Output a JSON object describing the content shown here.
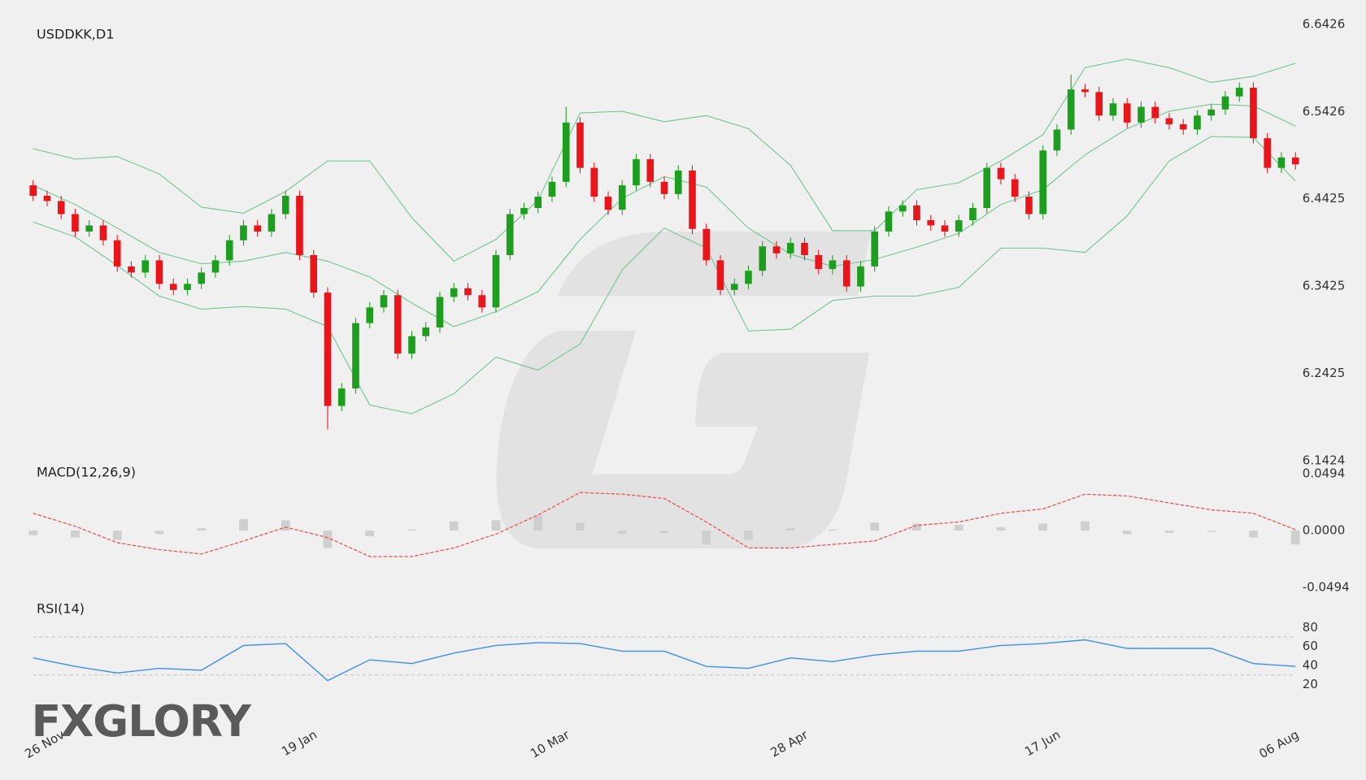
{
  "chart_data": [
    {
      "type": "candlestick",
      "title": "USDDKK,D1",
      "up_color": "#1e9e1e",
      "down_color": "#e8161b",
      "xlim": [
        0,
        90
      ],
      "categories": [
        "26 Nov",
        null,
        null,
        null,
        null,
        null,
        null,
        null,
        null,
        null,
        null,
        null,
        null,
        null,
        null,
        null,
        null,
        null,
        "19 Jan",
        null,
        null,
        null,
        null,
        null,
        null,
        null,
        null,
        null,
        null,
        null,
        null,
        null,
        null,
        null,
        null,
        null,
        "10 Mar",
        null,
        null,
        null,
        null,
        null,
        null,
        null,
        null,
        null,
        null,
        null,
        null,
        null,
        null,
        null,
        null,
        "28 Apr",
        null,
        null,
        null,
        null,
        null,
        null,
        null,
        null,
        null,
        null,
        null,
        null,
        null,
        null,
        null,
        null,
        null,
        "17 Jun",
        null,
        null,
        null,
        null,
        null,
        null,
        null,
        null,
        null,
        null,
        null,
        null,
        null,
        null,
        null,
        null,
        "06 Aug",
        null,
        null
      ],
      "open": [
        6.458,
        6.446,
        6.44,
        6.425,
        6.405,
        6.412,
        6.395,
        6.365,
        6.358,
        6.372,
        6.345,
        6.338,
        6.345,
        6.358,
        6.372,
        6.395,
        6.412,
        6.405,
        6.425,
        6.446,
        6.378,
        6.335,
        6.205,
        6.225,
        6.3,
        6.318,
        6.332,
        6.265,
        6.285,
        6.295,
        6.33,
        6.34,
        6.332,
        6.318,
        6.378,
        6.425,
        6.432,
        6.445,
        6.462,
        6.53,
        6.478,
        6.445,
        6.43,
        6.458,
        6.488,
        6.462,
        6.448,
        6.475,
        6.408,
        6.372,
        6.338,
        6.345,
        6.36,
        6.388,
        6.38,
        6.392,
        6.378,
        6.362,
        6.372,
        6.342,
        6.365,
        6.405,
        6.428,
        6.435,
        6.418,
        6.412,
        6.405,
        6.418,
        6.432,
        6.478,
        6.465,
        6.445,
        6.425,
        6.498,
        6.522,
        6.568,
        6.565,
        6.538,
        6.552,
        6.53,
        6.548,
        6.535,
        6.528,
        6.522,
        6.538,
        6.545,
        6.56,
        6.57,
        6.512,
        6.478,
        6.49
      ],
      "high": [
        6.464,
        6.452,
        6.446,
        6.431,
        6.418,
        6.418,
        6.401,
        6.371,
        6.378,
        6.378,
        6.351,
        6.351,
        6.364,
        6.378,
        6.401,
        6.418,
        6.418,
        6.431,
        6.452,
        6.452,
        6.384,
        6.341,
        6.231,
        6.306,
        6.324,
        6.338,
        6.338,
        6.291,
        6.301,
        6.336,
        6.346,
        6.346,
        6.338,
        6.384,
        6.431,
        6.438,
        6.451,
        6.468,
        6.548,
        6.536,
        6.484,
        6.451,
        6.464,
        6.494,
        6.494,
        6.468,
        6.481,
        6.481,
        6.414,
        6.378,
        6.351,
        6.366,
        6.394,
        6.394,
        6.398,
        6.398,
        6.384,
        6.378,
        6.378,
        6.371,
        6.411,
        6.434,
        6.441,
        6.441,
        6.424,
        6.418,
        6.424,
        6.438,
        6.484,
        6.484,
        6.471,
        6.451,
        6.504,
        6.528,
        6.585,
        6.574,
        6.571,
        6.558,
        6.558,
        6.554,
        6.554,
        6.541,
        6.534,
        6.544,
        6.551,
        6.566,
        6.576,
        6.576,
        6.518,
        6.496,
        6.496
      ],
      "low": [
        6.44,
        6.434,
        6.419,
        6.399,
        6.399,
        6.389,
        6.359,
        6.352,
        6.352,
        6.339,
        6.332,
        6.332,
        6.339,
        6.352,
        6.366,
        6.389,
        6.399,
        6.399,
        6.419,
        6.372,
        6.329,
        6.178,
        6.199,
        6.219,
        6.294,
        6.312,
        6.259,
        6.259,
        6.279,
        6.289,
        6.324,
        6.326,
        6.312,
        6.312,
        6.372,
        6.419,
        6.426,
        6.439,
        6.456,
        6.472,
        6.439,
        6.424,
        6.424,
        6.452,
        6.456,
        6.442,
        6.442,
        6.402,
        6.366,
        6.332,
        6.332,
        6.339,
        6.354,
        6.374,
        6.374,
        6.372,
        6.356,
        6.356,
        6.336,
        6.336,
        6.359,
        6.399,
        6.422,
        6.412,
        6.406,
        6.399,
        6.399,
        6.412,
        6.426,
        6.459,
        6.439,
        6.419,
        6.419,
        6.492,
        6.516,
        6.559,
        6.532,
        6.532,
        6.524,
        6.524,
        6.529,
        6.522,
        6.516,
        6.516,
        6.532,
        6.539,
        6.554,
        6.506,
        6.472,
        6.472,
        6.476
      ],
      "close": [
        6.446,
        6.44,
        6.425,
        6.405,
        6.412,
        6.395,
        6.365,
        6.358,
        6.372,
        6.345,
        6.338,
        6.345,
        6.358,
        6.372,
        6.395,
        6.412,
        6.405,
        6.425,
        6.446,
        6.378,
        6.335,
        6.205,
        6.225,
        6.3,
        6.318,
        6.332,
        6.265,
        6.285,
        6.295,
        6.33,
        6.34,
        6.332,
        6.318,
        6.378,
        6.425,
        6.432,
        6.445,
        6.462,
        6.53,
        6.478,
        6.445,
        6.43,
        6.458,
        6.488,
        6.462,
        6.448,
        6.475,
        6.408,
        6.372,
        6.338,
        6.345,
        6.36,
        6.388,
        6.38,
        6.392,
        6.378,
        6.362,
        6.372,
        6.342,
        6.365,
        6.405,
        6.428,
        6.435,
        6.418,
        6.412,
        6.405,
        6.418,
        6.432,
        6.478,
        6.465,
        6.445,
        6.425,
        6.498,
        6.522,
        6.568,
        6.565,
        6.538,
        6.552,
        6.53,
        6.548,
        6.535,
        6.528,
        6.522,
        6.538,
        6.545,
        6.56,
        6.57,
        6.512,
        6.478,
        6.49,
        6.482
      ],
      "bands": {
        "color": "#6cc48f",
        "x": [
          0,
          3,
          6,
          9,
          12,
          15,
          18,
          21,
          24,
          27,
          30,
          33,
          36,
          39,
          42,
          45,
          48,
          51,
          54,
          57,
          60,
          63,
          66,
          69,
          72,
          75,
          78,
          81,
          84,
          87,
          90
        ],
        "upper": [
          6.5,
          6.488,
          6.491,
          6.471,
          6.433,
          6.426,
          6.451,
          6.486,
          6.486,
          6.421,
          6.371,
          6.396,
          6.441,
          6.541,
          6.543,
          6.531,
          6.538,
          6.523,
          6.481,
          6.406,
          6.406,
          6.453,
          6.461,
          6.486,
          6.516,
          6.593,
          6.603,
          6.593,
          6.576,
          6.583,
          6.598
        ],
        "middle": [
          6.458,
          6.436,
          6.409,
          6.381,
          6.368,
          6.371,
          6.381,
          6.371,
          6.353,
          6.323,
          6.296,
          6.313,
          6.336,
          6.396,
          6.443,
          6.468,
          6.456,
          6.409,
          6.379,
          6.365,
          6.373,
          6.387,
          6.403,
          6.436,
          6.453,
          6.493,
          6.523,
          6.543,
          6.551,
          6.549,
          6.526
        ],
        "lower": [
          6.416,
          6.399,
          6.366,
          6.331,
          6.316,
          6.319,
          6.316,
          6.296,
          6.206,
          6.196,
          6.219,
          6.261,
          6.246,
          6.276,
          6.361,
          6.409,
          6.386,
          6.291,
          6.293,
          6.326,
          6.331,
          6.331,
          6.341,
          6.386,
          6.386,
          6.381,
          6.423,
          6.486,
          6.514,
          6.513,
          6.463
        ]
      },
      "ylim": [
        6.1424,
        6.6426
      ],
      "yticks": [
        6.6426,
        6.5426,
        6.4425,
        6.3425,
        6.2425,
        6.1424
      ]
    },
    {
      "type": "bar",
      "title": "MACD(12,26,9)",
      "xlim": [
        0,
        90
      ],
      "x": [
        0,
        3,
        6,
        9,
        12,
        15,
        18,
        21,
        24,
        27,
        30,
        33,
        36,
        39,
        42,
        45,
        48,
        51,
        54,
        57,
        60,
        63,
        66,
        69,
        72,
        75,
        78,
        81,
        84,
        87,
        90
      ],
      "series": [
        {
          "type": "bar",
          "color": "#cfcfcf",
          "values": [
            -0.004,
            -0.006,
            -0.008,
            -0.003,
            0.002,
            0.01,
            0.009,
            -0.015,
            -0.005,
            0.001,
            0.008,
            0.009,
            0.013,
            0.007,
            -0.003,
            -0.002,
            -0.012,
            -0.008,
            0.002,
            0.001,
            0.007,
            0.006,
            0.005,
            0.003,
            0.006,
            0.008,
            -0.003,
            -0.002,
            -0.001,
            -0.006,
            -0.012
          ]
        },
        {
          "type": "line",
          "color": "#f05050",
          "dashed": true,
          "values": [
            0.015,
            0.0038,
            -0.0105,
            -0.0165,
            -0.0203,
            -0.009,
            0.003,
            -0.006,
            -0.0225,
            -0.0225,
            -0.015,
            -0.003,
            0.0135,
            0.033,
            0.0315,
            0.0278,
            0.0075,
            -0.015,
            -0.015,
            -0.012,
            -0.009,
            0.0045,
            0.0075,
            0.015,
            0.0188,
            0.0315,
            0.03,
            0.024,
            0.018,
            0.015,
            0.0008
          ]
        }
      ],
      "ylim": [
        -0.0494,
        0.0494
      ],
      "yticks": [
        0.0494,
        {
          "value": 0,
          "label": "0.0000"
        },
        -0.0494
      ]
    },
    {
      "type": "line",
      "title": "RSI(14)",
      "xlim": [
        0,
        90
      ],
      "color": "#3d8ee8",
      "x": [
        0,
        3,
        6,
        9,
        12,
        15,
        18,
        21,
        24,
        27,
        30,
        33,
        36,
        39,
        42,
        45,
        48,
        51,
        54,
        57,
        60,
        63,
        66,
        69,
        72,
        75,
        78,
        81,
        84,
        87,
        90
      ],
      "values": [
        48,
        39,
        32,
        37,
        35,
        61,
        63,
        24,
        46,
        42,
        53,
        61,
        64,
        63,
        55,
        55,
        39,
        37,
        48,
        44,
        51,
        55,
        55,
        61,
        63,
        67,
        58,
        58,
        58,
        42,
        39
      ],
      "levels": [
        70,
        30
      ],
      "ylim": [
        0,
        100
      ],
      "yticks": [
        80,
        60,
        40,
        20
      ]
    }
  ],
  "watermark": "FXGLORY"
}
